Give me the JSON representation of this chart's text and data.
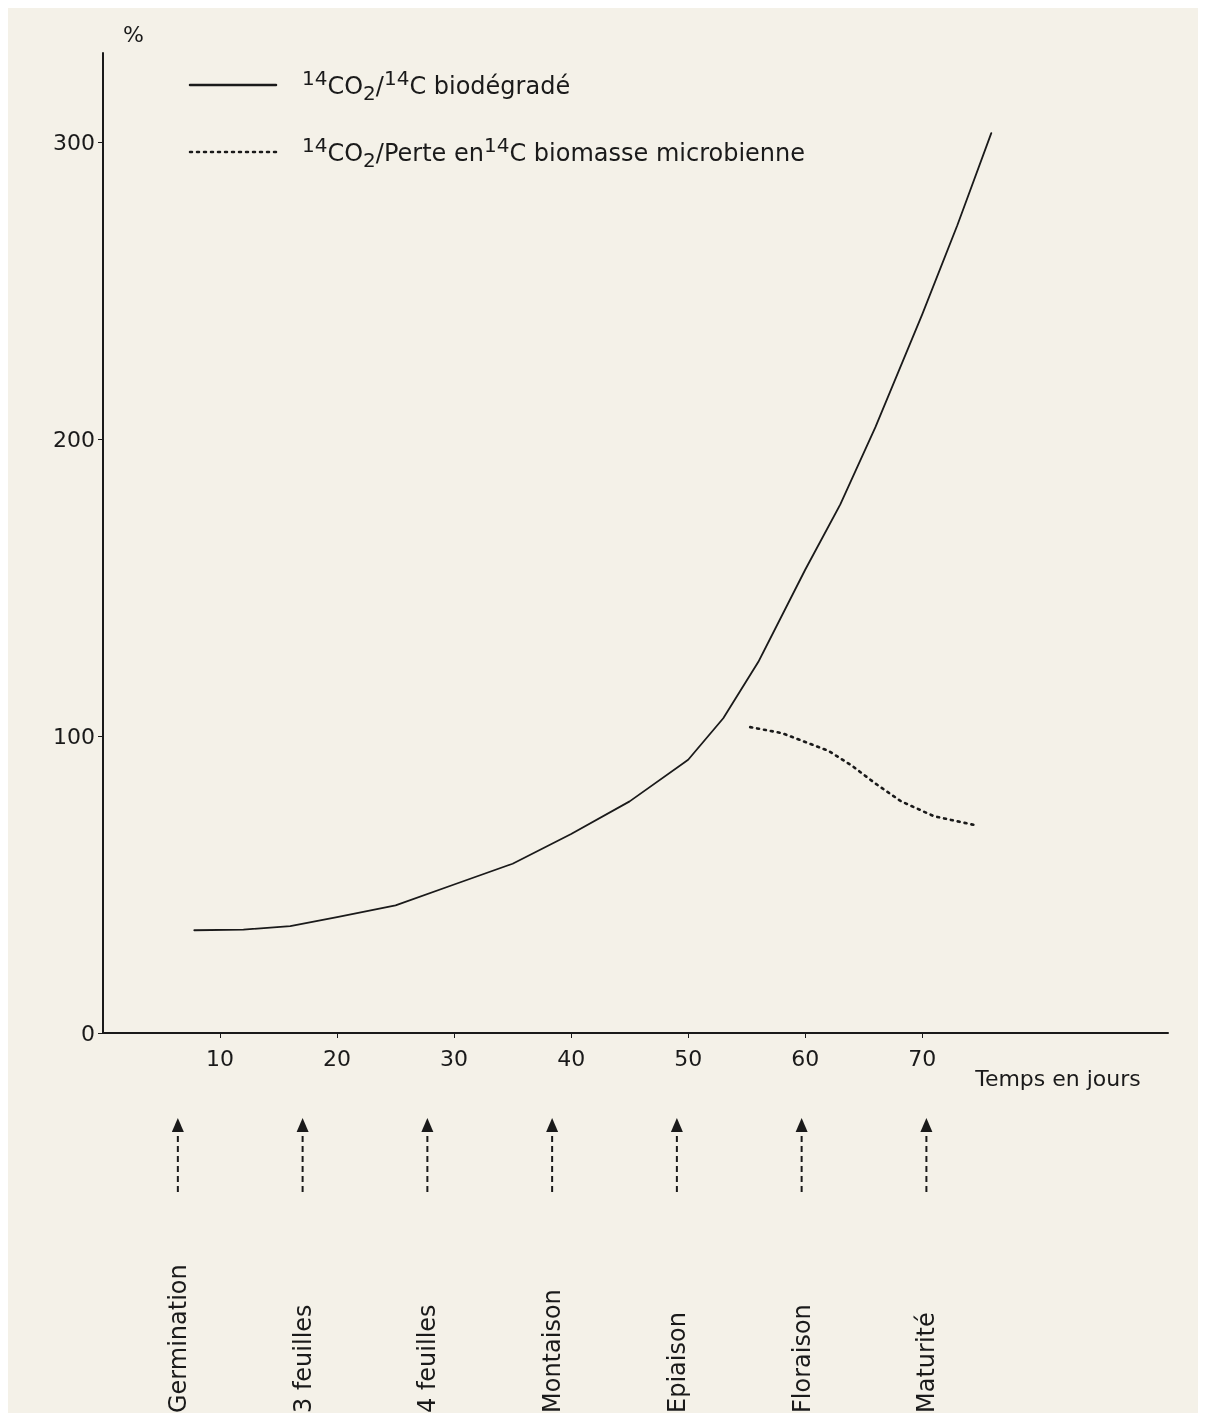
{
  "chart_data": {
    "type": "line",
    "xlabel": "Temps en jours",
    "ylabel": "%",
    "xlim": [
      0,
      91
    ],
    "ylim": [
      0,
      330
    ],
    "xticks": [
      10,
      20,
      30,
      40,
      50,
      60,
      70
    ],
    "yticks": [
      0,
      100,
      200,
      300
    ],
    "grid": false,
    "legend": "top left",
    "marker": "none",
    "series": [
      {
        "name": "$^{14}$CO$_{2}$/$^{14}$C biodégradé",
        "color": "#1a1a1a",
        "line_style": "solid",
        "x": [
          7.8,
          12,
          16,
          20,
          25,
          30,
          35,
          40,
          45,
          50,
          53,
          56,
          60,
          63,
          66,
          70,
          73,
          75.9
        ],
        "values": [
          34.6,
          34.8,
          36,
          39,
          43,
          50,
          57,
          67,
          78,
          92,
          106,
          125,
          156,
          178,
          204,
          242,
          272,
          303
        ]
      },
      {
        "name": "$^{14}$CO$_{2}$/Perte en$^{14}$C biomasse microbienne",
        "color": "#1a1a1a",
        "line_style": "dotted",
        "x": [
          55.3,
          58,
          60,
          62,
          64,
          66,
          68.2,
          71,
          74.5
        ],
        "values": [
          103,
          101,
          98,
          95,
          90,
          84,
          78,
          73,
          70
        ]
      }
    ],
    "annotations": [
      "Germination",
      "3 feuilles",
      "4 feuilles",
      "Montaison",
      "Epiaison",
      "Floraison",
      "Maturité"
    ]
  }
}
